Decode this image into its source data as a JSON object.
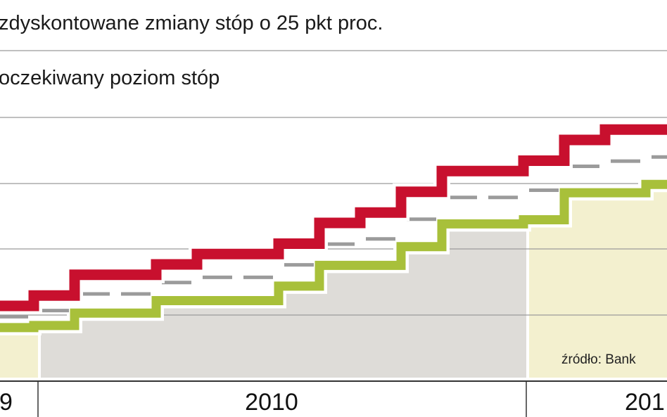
{
  "chart_data": {
    "type": "line",
    "legend": [
      {
        "name": "zdyskontowane zmiany stóp o 25 pkt proc.",
        "color": "#c8102e"
      },
      {
        "name": "oczekiwany poziom stóp",
        "color": "#a8c03a"
      }
    ],
    "source": "źródło: Bank",
    "x_tick_labels": [
      "9",
      "2010",
      "201"
    ],
    "series": [
      {
        "name": "zdyskontowane zmiany stóp o 25 pkt proc.",
        "color": "#c8102e",
        "steps": [
          0,
          0.5,
          1.5,
          1.5,
          2,
          2.5,
          2.5,
          3,
          4,
          4.5,
          5.5,
          6.5,
          6.5,
          7,
          8,
          8.5,
          8.5,
          9
        ]
      },
      {
        "name": "oczekiwany poziom stóp",
        "color": "#a8c03a",
        "steps": [
          -0.3,
          -0.2,
          0.4,
          0.4,
          1,
          1,
          1,
          1.7,
          2.7,
          2.7,
          3.6,
          4.7,
          4.7,
          4.9,
          6.2,
          6.2,
          6.6,
          7
        ]
      }
    ],
    "background_shades": [
      "#f3f0cf",
      "#dedcd8",
      "#f3f0cf"
    ],
    "line_colors": {
      "grid": "#9a9a9a",
      "axis": "#333333",
      "gray_marker": "#9b9b9b"
    }
  }
}
